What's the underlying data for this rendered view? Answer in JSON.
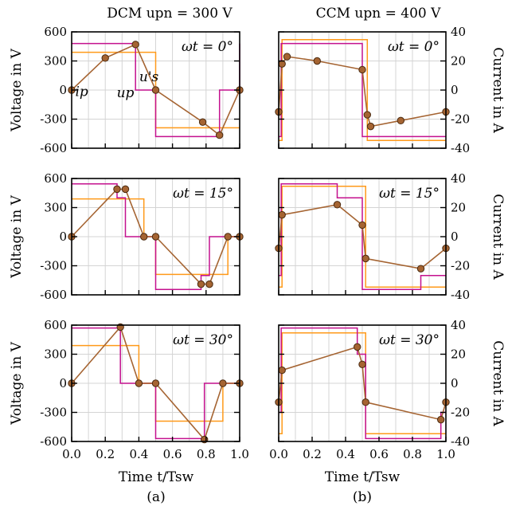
{
  "figure": {
    "left_title": "DCM upn = 300 V",
    "right_title": "CCM upn = 400 V",
    "left_ylabel": "Voltage in V",
    "right_ylabel": "Current in A",
    "xlabel": "Time t/Tsw",
    "left_caption": "(a)",
    "right_caption": "(b)"
  },
  "colors": {
    "up": "#c4118e",
    "us": "#ff9a1a",
    "ip_line": "#a56432",
    "ip_marker": "#a56432",
    "ip_marker_edge": "#4a2a10"
  },
  "chart_data": [
    {
      "id": "dcm-0",
      "type": "line",
      "annotation": "ωt = 0°",
      "column": "DCM",
      "row": 0,
      "xlim": [
        0,
        1
      ],
      "ylim_voltage": [
        -600,
        600
      ],
      "ylim_current": [
        -40,
        40
      ],
      "xticks": [
        "0.0",
        "0.2",
        "0.4",
        "0.6",
        "0.8",
        "1.0"
      ],
      "yticks_voltage": [
        "600",
        "300",
        "0",
        "-300",
        "-600"
      ],
      "yticks_current": [
        "40",
        "20",
        "0",
        "-20",
        "-40"
      ],
      "labels": [
        {
          "text": "ip",
          "x": 0.06,
          "y": -60
        },
        {
          "text": "up",
          "x": 0.32,
          "y": -75
        },
        {
          "text": "u's",
          "x": 0.46,
          "y": 90
        }
      ],
      "series": [
        {
          "name": "up",
          "x": [
            0,
            0.38,
            0.38,
            0.5,
            0.5,
            0.88,
            0.88,
            1.0,
            1.0
          ],
          "y": [
            480,
            480,
            0,
            0,
            -480,
            -480,
            0,
            0,
            480
          ]
        },
        {
          "name": "us",
          "x": [
            0,
            0.5,
            0.5,
            1.0
          ],
          "y": [
            390,
            390,
            -390,
            -390
          ]
        },
        {
          "name": "ip",
          "x": [
            0,
            0.2,
            0.38,
            0.5,
            0.78,
            0.88,
            1.0
          ],
          "y": [
            0,
            330,
            470,
            0,
            -330,
            -465,
            0
          ],
          "markers": true
        }
      ]
    },
    {
      "id": "ccm-0",
      "type": "line",
      "annotation": "ωt = 0°",
      "column": "CCM",
      "row": 0,
      "xlim": [
        0,
        1
      ],
      "ylim_voltage": [
        -600,
        600
      ],
      "ylim_current": [
        -40,
        40
      ],
      "xticks": [
        "0.0",
        "0.2",
        "0.4",
        "0.6",
        "0.8",
        "1.0"
      ],
      "yticks_voltage": [
        "600",
        "300",
        "0",
        "-300",
        "-600"
      ],
      "yticks_current": [
        "40",
        "20",
        "0",
        "-20",
        "-40"
      ],
      "series": [
        {
          "name": "up",
          "x": [
            0,
            0.015,
            0.015,
            0.5,
            0.5,
            1.0
          ],
          "y": [
            -480,
            -480,
            480,
            480,
            -480,
            -480
          ]
        },
        {
          "name": "us",
          "x": [
            0,
            0.02,
            0.02,
            0.53,
            0.53,
            1.0
          ],
          "y": [
            -520,
            -520,
            520,
            520,
            -520,
            -520
          ]
        },
        {
          "name": "ip",
          "x": [
            0,
            0.02,
            0.05,
            0.23,
            0.5,
            0.53,
            0.55,
            0.73,
            1.0
          ],
          "y": [
            -15,
            18,
            23,
            20,
            14,
            -17,
            -25,
            -21,
            -15
          ],
          "markers": true
        }
      ]
    },
    {
      "id": "dcm-15",
      "type": "line",
      "annotation": "ωt = 15°",
      "column": "DCM",
      "row": 1,
      "xlim": [
        0,
        1
      ],
      "ylim_voltage": [
        -600,
        600
      ],
      "ylim_current": [
        -40,
        40
      ],
      "xticks": [
        "0.0",
        "0.2",
        "0.4",
        "0.6",
        "0.8",
        "1.0"
      ],
      "yticks_voltage": [
        "600",
        "300",
        "0",
        "-300",
        "-600"
      ],
      "yticks_current": [
        "40",
        "20",
        "0",
        "-20",
        "-40"
      ],
      "series": [
        {
          "name": "up",
          "x": [
            0,
            0.27,
            0.27,
            0.32,
            0.32,
            0.5,
            0.5,
            0.77,
            0.77,
            0.82,
            0.82,
            1.0
          ],
          "y": [
            545,
            545,
            400,
            400,
            0,
            0,
            -545,
            -545,
            -400,
            -400,
            0,
            0
          ]
        },
        {
          "name": "us",
          "x": [
            0,
            0.43,
            0.43,
            0.5,
            0.5,
            0.93,
            0.93,
            1.0
          ],
          "y": [
            390,
            390,
            0,
            0,
            -390,
            -390,
            0,
            0
          ]
        },
        {
          "name": "ip",
          "x": [
            0,
            0.27,
            0.32,
            0.43,
            0.5,
            0.77,
            0.82,
            0.93,
            1.0
          ],
          "y": [
            0,
            490,
            490,
            0,
            0,
            -490,
            -490,
            0,
            0
          ],
          "markers": true
        }
      ]
    },
    {
      "id": "ccm-15",
      "type": "line",
      "annotation": "ωt = 15°",
      "column": "CCM",
      "row": 1,
      "xlim": [
        0,
        1
      ],
      "ylim_voltage": [
        -600,
        600
      ],
      "ylim_current": [
        -40,
        40
      ],
      "xticks": [
        "0.0",
        "0.2",
        "0.4",
        "0.6",
        "0.8",
        "1.0"
      ],
      "yticks_voltage": [
        "600",
        "300",
        "0",
        "-300",
        "-600"
      ],
      "yticks_current": [
        "40",
        "20",
        "0",
        "-20",
        "-40"
      ],
      "series": [
        {
          "name": "up",
          "x": [
            0,
            0.015,
            0.015,
            0.35,
            0.35,
            0.5,
            0.5,
            0.85,
            0.85,
            1.0
          ],
          "y": [
            -400,
            -400,
            545,
            545,
            400,
            400,
            -545,
            -545,
            -400,
            -400
          ]
        },
        {
          "name": "us",
          "x": [
            0,
            0.02,
            0.02,
            0.52,
            0.52,
            1.0
          ],
          "y": [
            -520,
            -520,
            520,
            520,
            -520,
            -520
          ]
        },
        {
          "name": "ip",
          "x": [
            0,
            0.02,
            0.35,
            0.5,
            0.52,
            0.85,
            1.0
          ],
          "y": [
            -8,
            15,
            22,
            8,
            -15,
            -22,
            -8
          ],
          "markers": true
        }
      ]
    },
    {
      "id": "dcm-30",
      "type": "line",
      "annotation": "ωt = 30°",
      "column": "DCM",
      "row": 2,
      "xlim": [
        0,
        1
      ],
      "ylim_voltage": [
        -600,
        600
      ],
      "ylim_current": [
        -40,
        40
      ],
      "xticks": [
        "0.0",
        "0.2",
        "0.4",
        "0.6",
        "0.8",
        "1.0"
      ],
      "yticks_voltage": [
        "600",
        "300",
        "0",
        "-300",
        "-600"
      ],
      "yticks_current": [
        "40",
        "20",
        "0",
        "-20",
        "-40"
      ],
      "series": [
        {
          "name": "up",
          "x": [
            0,
            0.29,
            0.29,
            0.5,
            0.5,
            0.79,
            0.79,
            1.0
          ],
          "y": [
            570,
            570,
            0,
            0,
            -570,
            -570,
            0,
            0
          ]
        },
        {
          "name": "us",
          "x": [
            0,
            0.4,
            0.4,
            0.5,
            0.5,
            0.9,
            0.9,
            1.0
          ],
          "y": [
            390,
            390,
            0,
            0,
            -390,
            -390,
            0,
            0
          ]
        },
        {
          "name": "ip",
          "x": [
            0,
            0.29,
            0.4,
            0.5,
            0.79,
            0.9,
            1.0
          ],
          "y": [
            0,
            580,
            0,
            0,
            -580,
            0,
            0
          ],
          "markers": true
        }
      ]
    },
    {
      "id": "ccm-30",
      "type": "line",
      "annotation": "ωt = 30°",
      "column": "CCM",
      "row": 2,
      "xlim": [
        0,
        1
      ],
      "ylim_voltage": [
        -600,
        600
      ],
      "ylim_current": [
        -40,
        40
      ],
      "xticks": [
        "0.0",
        "0.2",
        "0.4",
        "0.6",
        "0.8",
        "1.0"
      ],
      "yticks_voltage": [
        "600",
        "300",
        "0",
        "-300",
        "-600"
      ],
      "yticks_current": [
        "40",
        "20",
        "0",
        "-20",
        "-40"
      ],
      "series": [
        {
          "name": "up",
          "x": [
            0,
            0.015,
            0.015,
            0.47,
            0.47,
            0.52,
            0.52,
            0.97,
            0.97,
            1.0
          ],
          "y": [
            -300,
            -300,
            570,
            570,
            300,
            300,
            -570,
            -570,
            -300,
            -300
          ]
        },
        {
          "name": "us",
          "x": [
            0,
            0.02,
            0.02,
            0.52,
            0.52,
            1.0
          ],
          "y": [
            -520,
            -520,
            520,
            520,
            -520,
            -520
          ]
        },
        {
          "name": "ip",
          "x": [
            0,
            0.02,
            0.47,
            0.5,
            0.52,
            0.97,
            1.0
          ],
          "y": [
            -13,
            9,
            25,
            13,
            -13,
            -25,
            -13
          ],
          "markers": true
        }
      ]
    }
  ]
}
